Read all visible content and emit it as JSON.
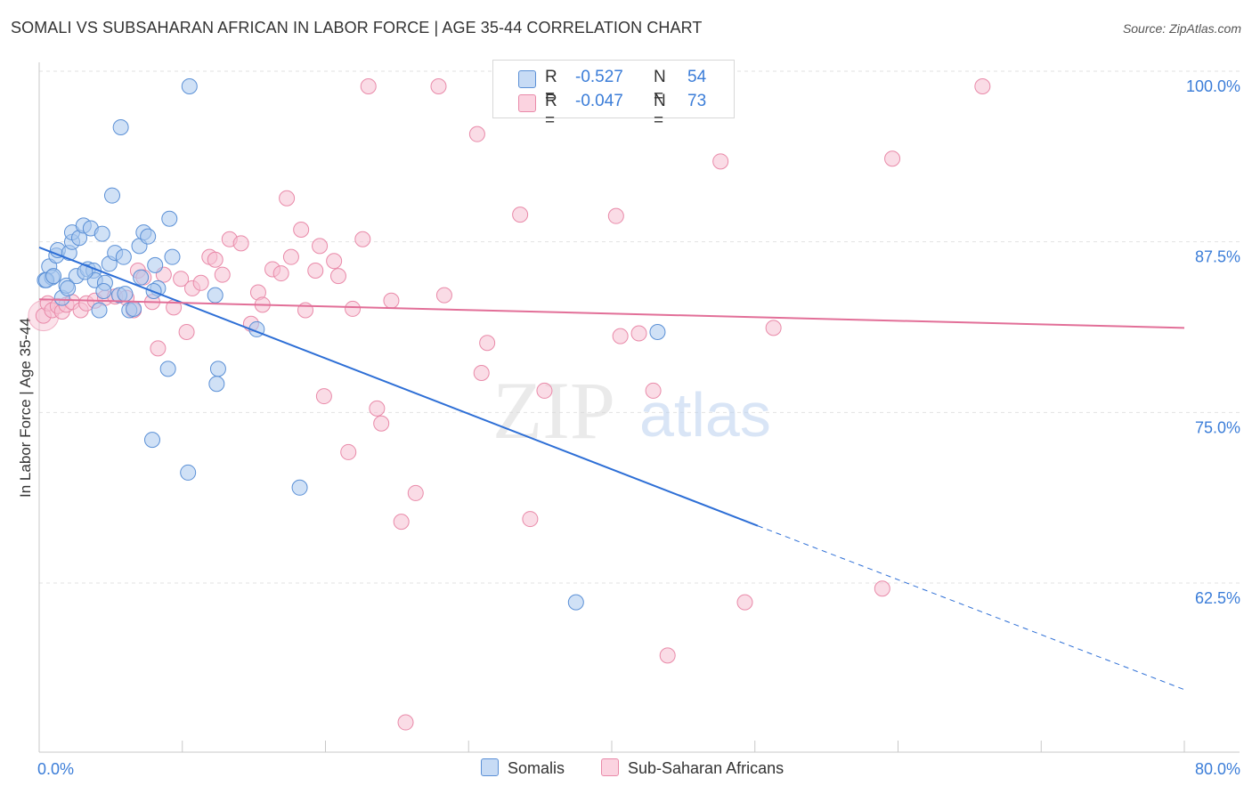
{
  "header": {
    "title": "SOMALI VS SUBSAHARAN AFRICAN IN LABOR FORCE | AGE 35-44 CORRELATION CHART",
    "source": "Source: ZipAtlas.com"
  },
  "watermark": {
    "zip": "ZIP",
    "atlas": "atlas"
  },
  "legend": {
    "rows": [
      {
        "r_label": "R =",
        "r_value": "-0.527",
        "n_label": "N =",
        "n_value": "54"
      },
      {
        "r_label": "R =",
        "r_value": "-0.047",
        "n_label": "N =",
        "n_value": "73"
      }
    ]
  },
  "bottom_legend": {
    "somalis": "Somalis",
    "subsaharan": "Sub-Saharan Africans"
  },
  "colors": {
    "blue_fill": "#a9c8ee",
    "blue_stroke": "#5b90d6",
    "blue_line": "#2e6fd6",
    "pink_fill": "#f6bfd1",
    "pink_stroke": "#e98aa9",
    "pink_line": "#e26f98",
    "axis_text": "#3b7dd8"
  },
  "chart_data": {
    "type": "scatter",
    "title": "SOMALI VS SUBSAHARAN AFRICAN IN LABOR FORCE | AGE 35-44 CORRELATION CHART",
    "xlabel": "",
    "ylabel": "In Labor Force | Age 35-44",
    "xlim": [
      0,
      80
    ],
    "ylim": [
      51,
      102
    ],
    "x_tick_labels": [
      "0.0%",
      "80.0%"
    ],
    "y_ticks": [
      {
        "value": 100,
        "label": "100.0%"
      },
      {
        "value": 87.5,
        "label": "87.5%"
      },
      {
        "value": 75,
        "label": "75.0%"
      },
      {
        "value": 62.5,
        "label": "62.5%"
      }
    ],
    "series": [
      {
        "name": "Somalis",
        "r": -0.527,
        "n": 54,
        "trend": {
          "x0": 0,
          "y0": 88.2,
          "x1": 50.2,
          "y1": 67.8,
          "x_dash_end": 80,
          "y_dash_end": 55.8
        },
        "points": [
          [
            0.4,
            85.8
          ],
          [
            0.7,
            86.8
          ],
          [
            0.9,
            86.0
          ],
          [
            1.2,
            87.6
          ],
          [
            1.3,
            88.0
          ],
          [
            1.6,
            84.5
          ],
          [
            1.9,
            85.4
          ],
          [
            2.1,
            87.8
          ],
          [
            2.3,
            88.6
          ],
          [
            2.3,
            89.3
          ],
          [
            2.6,
            86.1
          ],
          [
            2.8,
            88.9
          ],
          [
            3.1,
            89.8
          ],
          [
            3.4,
            86.6
          ],
          [
            3.6,
            89.6
          ],
          [
            3.8,
            86.5
          ],
          [
            3.9,
            85.8
          ],
          [
            4.2,
            83.6
          ],
          [
            4.4,
            89.2
          ],
          [
            4.6,
            85.6
          ],
          [
            4.9,
            87.0
          ],
          [
            5.1,
            92.0
          ],
          [
            5.3,
            87.8
          ],
          [
            5.6,
            84.7
          ],
          [
            5.7,
            97.0
          ],
          [
            5.9,
            87.5
          ],
          [
            6.3,
            83.6
          ],
          [
            7.0,
            88.3
          ],
          [
            7.3,
            89.3
          ],
          [
            7.6,
            89.0
          ],
          [
            8.1,
            86.9
          ],
          [
            8.3,
            85.2
          ],
          [
            9.1,
            90.3
          ],
          [
            9.3,
            87.5
          ],
          [
            9.0,
            79.3
          ],
          [
            10.4,
            71.7
          ],
          [
            10.5,
            100.0
          ],
          [
            12.3,
            84.7
          ],
          [
            12.5,
            79.3
          ],
          [
            12.4,
            78.2
          ],
          [
            15.2,
            82.2
          ],
          [
            18.2,
            70.6
          ],
          [
            7.9,
            74.1
          ],
          [
            37.5,
            62.2
          ],
          [
            43.2,
            82.0
          ],
          [
            0.5,
            85.8
          ],
          [
            1.0,
            86.1
          ],
          [
            2.0,
            85.2
          ],
          [
            3.2,
            86.4
          ],
          [
            4.5,
            85.0
          ],
          [
            6.0,
            84.8
          ],
          [
            7.1,
            86.0
          ],
          [
            8.0,
            85.0
          ],
          [
            6.6,
            83.7
          ]
        ]
      },
      {
        "name": "Sub-Saharan Africans",
        "r": -0.047,
        "n": 73,
        "trend": {
          "x0": 0,
          "y0": 84.4,
          "x1": 80,
          "y1": 82.3
        },
        "points": [
          [
            0.3,
            83.2
          ],
          [
            0.6,
            84.1
          ],
          [
            0.9,
            83.6
          ],
          [
            1.3,
            83.9
          ],
          [
            1.6,
            83.5
          ],
          [
            1.9,
            84.0
          ],
          [
            2.3,
            84.2
          ],
          [
            2.9,
            83.6
          ],
          [
            3.3,
            84.1
          ],
          [
            3.9,
            84.3
          ],
          [
            4.6,
            84.5
          ],
          [
            5.3,
            84.6
          ],
          [
            6.1,
            84.5
          ],
          [
            6.6,
            83.6
          ],
          [
            6.9,
            86.5
          ],
          [
            7.3,
            86.0
          ],
          [
            7.9,
            84.2
          ],
          [
            8.3,
            80.8
          ],
          [
            8.7,
            86.2
          ],
          [
            9.4,
            83.8
          ],
          [
            9.9,
            85.9
          ],
          [
            10.3,
            82.0
          ],
          [
            10.7,
            85.2
          ],
          [
            11.3,
            85.6
          ],
          [
            11.9,
            87.5
          ],
          [
            12.3,
            87.3
          ],
          [
            12.8,
            86.2
          ],
          [
            13.3,
            88.8
          ],
          [
            14.1,
            88.5
          ],
          [
            14.8,
            82.6
          ],
          [
            15.3,
            84.9
          ],
          [
            15.6,
            84.0
          ],
          [
            16.3,
            86.6
          ],
          [
            16.9,
            86.3
          ],
          [
            17.3,
            91.8
          ],
          [
            17.6,
            87.5
          ],
          [
            18.3,
            89.5
          ],
          [
            18.6,
            83.6
          ],
          [
            19.3,
            86.5
          ],
          [
            19.6,
            88.3
          ],
          [
            19.9,
            77.3
          ],
          [
            20.6,
            87.2
          ],
          [
            20.9,
            86.1
          ],
          [
            21.6,
            73.2
          ],
          [
            21.9,
            83.7
          ],
          [
            22.6,
            88.8
          ],
          [
            23.6,
            76.4
          ],
          [
            23.9,
            75.3
          ],
          [
            24.6,
            84.3
          ],
          [
            25.3,
            68.1
          ],
          [
            25.6,
            53.4
          ],
          [
            26.3,
            70.2
          ],
          [
            23.0,
            100.0
          ],
          [
            27.9,
            100.0
          ],
          [
            28.3,
            84.7
          ],
          [
            30.6,
            96.5
          ],
          [
            30.9,
            79.0
          ],
          [
            31.3,
            81.2
          ],
          [
            32.9,
            100.0
          ],
          [
            33.6,
            90.6
          ],
          [
            34.3,
            68.3
          ],
          [
            35.3,
            77.7
          ],
          [
            40.3,
            90.5
          ],
          [
            40.6,
            81.7
          ],
          [
            41.9,
            81.9
          ],
          [
            42.9,
            77.7
          ],
          [
            43.9,
            58.3
          ],
          [
            47.6,
            94.5
          ],
          [
            49.3,
            62.2
          ],
          [
            51.3,
            82.3
          ],
          [
            58.9,
            63.2
          ],
          [
            59.6,
            94.7
          ],
          [
            65.9,
            100.0
          ]
        ]
      }
    ]
  }
}
